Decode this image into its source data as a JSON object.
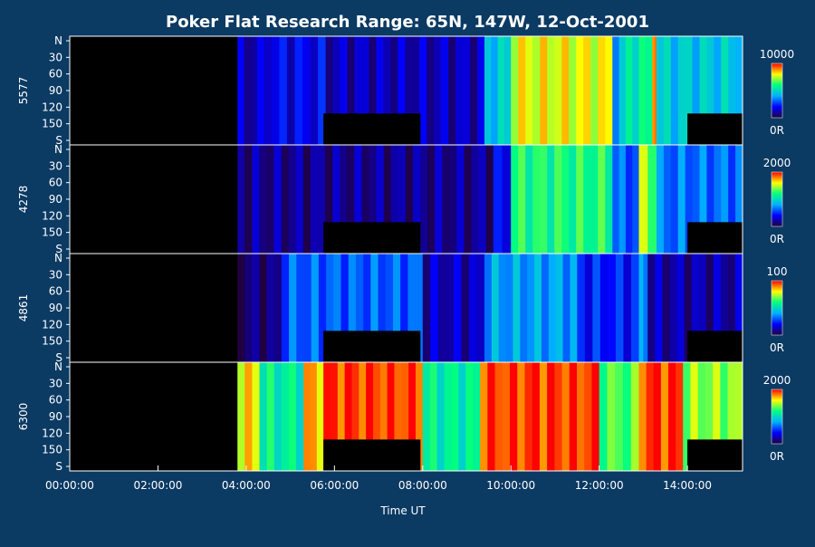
{
  "chart_data": {
    "type": "heatmap",
    "title": "Poker Flat Research Range: 65N, 147W, 12-Oct-2001",
    "xlabel": "Time UT",
    "x_ticks": [
      "00:00:00",
      "02:00:00",
      "04:00:00",
      "06:00:00",
      "08:00:00",
      "10:00:00",
      "12:00:00",
      "14:00:00"
    ],
    "x_range_hours": [
      0,
      15.25
    ],
    "y_ticks": [
      "N",
      "30",
      "60",
      "90",
      "120",
      "150",
      "S"
    ],
    "y_range": [
      0,
      180
    ],
    "panels": [
      {
        "wavelength": "5577",
        "scale_max_label": "10000",
        "scale_min_label": "0R"
      },
      {
        "wavelength": "4278",
        "scale_max_label": "2000",
        "scale_min_label": "0R"
      },
      {
        "wavelength": "4861",
        "scale_max_label": "100",
        "scale_min_label": "0R"
      },
      {
        "wavelength": "6300",
        "scale_max_label": "2000",
        "scale_min_label": "0R"
      }
    ],
    "data_start_hours": 3.8,
    "masked_blocks": [
      {
        "t_start": 5.75,
        "t_end": 7.95,
        "angle_from": 128,
        "angle_to": 180
      },
      {
        "t_start": 14.0,
        "t_end": 15.25,
        "angle_from": 128,
        "angle_to": 180
      }
    ],
    "activity": [
      [
        0,
        [
          3.8,
          4.4,
          0.12
        ],
        [
          4.4,
          5.8,
          0.18
        ],
        [
          5.8,
          9.4,
          0.12
        ],
        [
          9.4,
          10.0,
          0.45
        ],
        [
          10.0,
          12.3,
          0.78
        ],
        [
          12.3,
          12.6,
          0.4
        ],
        [
          12.6,
          13.2,
          0.55
        ],
        [
          13.2,
          13.3,
          0.95
        ],
        [
          13.3,
          15.25,
          0.45
        ]
      ],
      [
        1,
        [
          3.8,
          9.6,
          0.08
        ],
        [
          9.6,
          10.0,
          0.18
        ],
        [
          10.0,
          12.3,
          0.6
        ],
        [
          12.3,
          12.9,
          0.3
        ],
        [
          12.9,
          13.3,
          0.7
        ],
        [
          13.3,
          15.25,
          0.32
        ]
      ],
      [
        2,
        [
          3.8,
          4.8,
          0.05
        ],
        [
          4.8,
          8.0,
          0.3
        ],
        [
          8.0,
          9.4,
          0.12
        ],
        [
          9.4,
          11.5,
          0.38
        ],
        [
          11.5,
          12.9,
          0.22
        ],
        [
          12.9,
          13.1,
          0.4
        ],
        [
          13.1,
          15.25,
          0.1
        ]
      ],
      [
        3,
        [
          3.8,
          4.3,
          0.8
        ],
        [
          4.3,
          5.3,
          0.55
        ],
        [
          5.3,
          5.75,
          0.85
        ],
        [
          5.75,
          8.0,
          0.95
        ],
        [
          8.0,
          9.3,
          0.55
        ],
        [
          9.3,
          12.0,
          0.95
        ],
        [
          12.0,
          12.9,
          0.65
        ],
        [
          12.9,
          13.9,
          0.95
        ],
        [
          13.9,
          15.25,
          0.7
        ]
      ]
    ],
    "colorbar": [
      "#200040",
      "#0000ff",
      "#00b0ff",
      "#00ff80",
      "#ffff00",
      "#ff0000"
    ]
  }
}
